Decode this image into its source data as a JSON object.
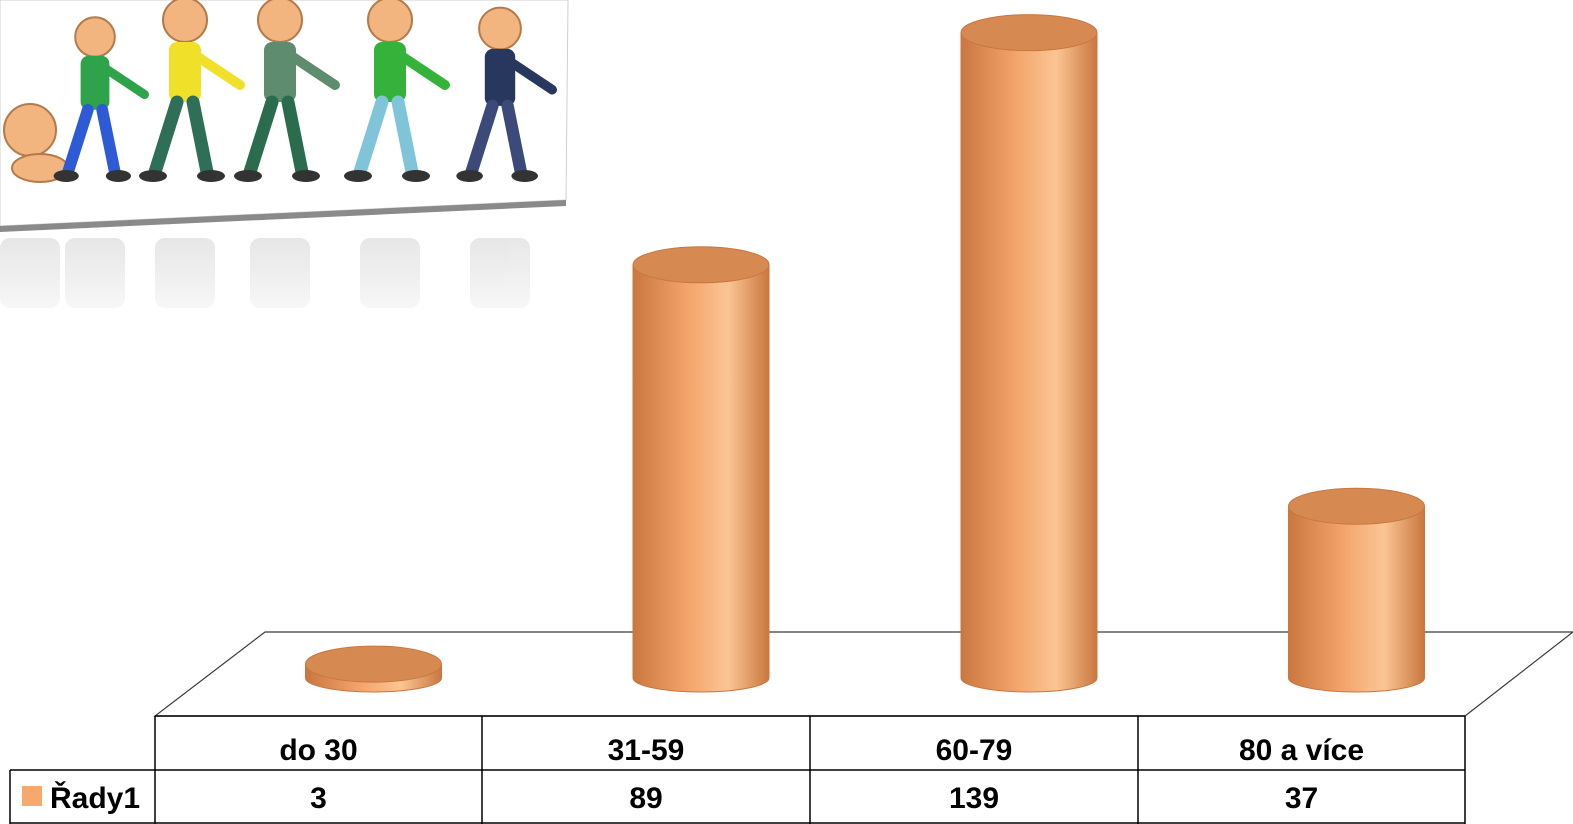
{
  "colors": {
    "bar_fill": "#f4a46a",
    "bar_light": "#fbc594",
    "bar_dark": "#c9773f",
    "bar_top": "#d68a52",
    "legend_key": "#f7a96d",
    "grid_line": "#3a3a3a",
    "table_line": "#000000"
  },
  "illustration": {
    "description_icon": "age-progression-people-icon"
  },
  "chart_data": {
    "type": "bar",
    "style": "3d-cylinder",
    "categories": [
      "do 30",
      "31-59",
      "60-79",
      "80 a více"
    ],
    "series": [
      {
        "name": "Řady1",
        "values": [
          3,
          89,
          139,
          37
        ]
      }
    ],
    "value_labels": [
      "3",
      "89",
      "139",
      "37"
    ],
    "ylim": [
      0,
      140
    ],
    "grid": false,
    "legend": "data-table-left",
    "title": "",
    "xlabel": "",
    "ylabel": ""
  }
}
